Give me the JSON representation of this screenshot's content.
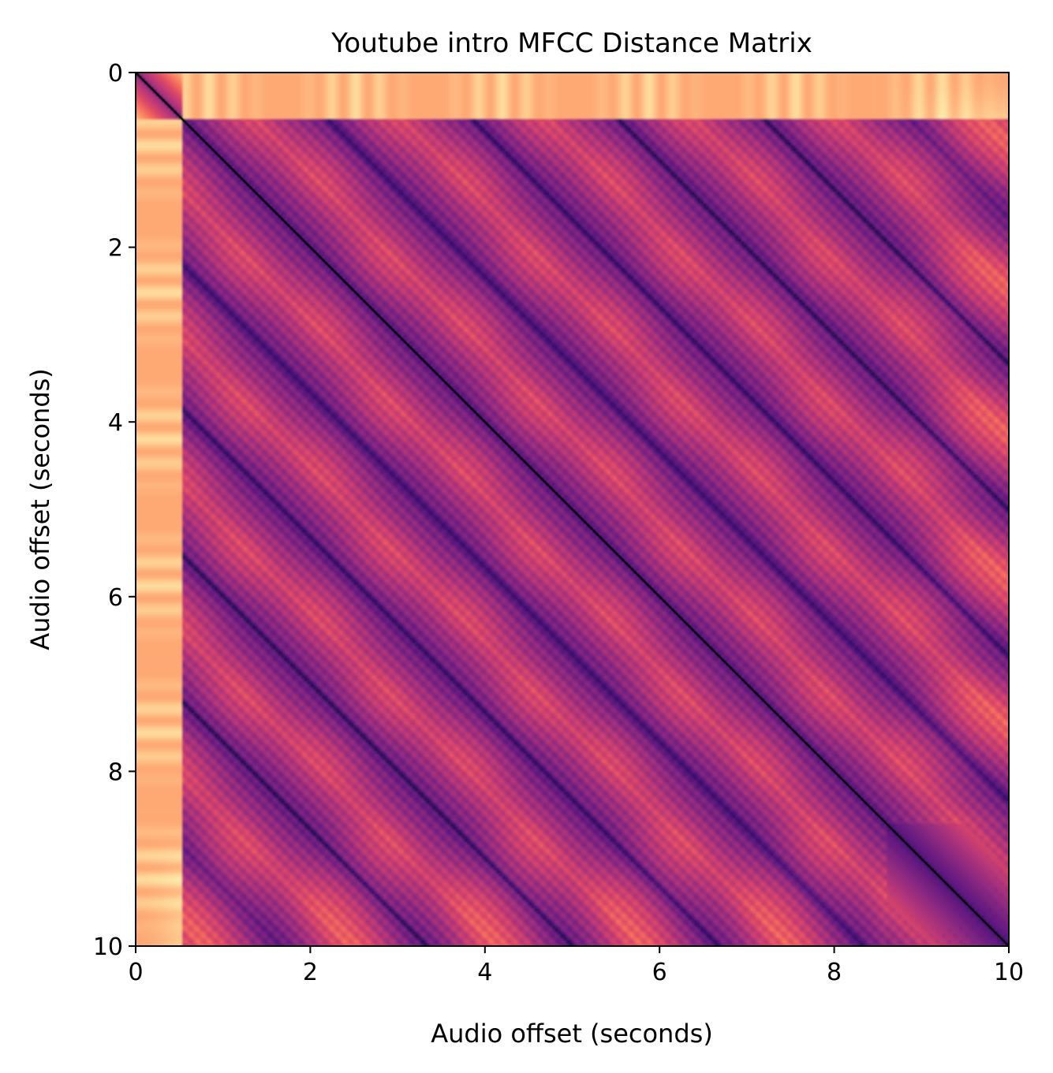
{
  "chart_data": {
    "type": "heatmap",
    "title": "Youtube intro MFCC Distance Matrix",
    "xlabel": "Audio offset (seconds)",
    "ylabel": "Audio offset (seconds)",
    "xlim": [
      0,
      10
    ],
    "ylim": [
      10,
      0
    ],
    "x_ticks": [
      0,
      2,
      4,
      6,
      8,
      10
    ],
    "y_ticks": [
      0,
      2,
      4,
      6,
      8,
      10
    ],
    "x_tick_labels": [
      "0",
      "2",
      "4",
      "6",
      "8",
      "10"
    ],
    "y_tick_labels": [
      "0",
      "2",
      "4",
      "6",
      "8",
      "10"
    ],
    "colormap": "magma",
    "colormap_stops": [
      "#180f3d",
      "#3b0f70",
      "#641a80",
      "#8c2981",
      "#b73779",
      "#de4968",
      "#f7705c",
      "#fe9f6d",
      "#fecf92",
      "#fcfdbf"
    ],
    "grid": false,
    "structure": {
      "diagonal_value": 0,
      "beat_period_seconds": 1.67,
      "ripple_period_seconds": 0.14,
      "initial_silence_seconds": 0.55,
      "dark_repetition_offsets_seconds": [
        1.67,
        3.33,
        5.0,
        6.67
      ]
    }
  }
}
